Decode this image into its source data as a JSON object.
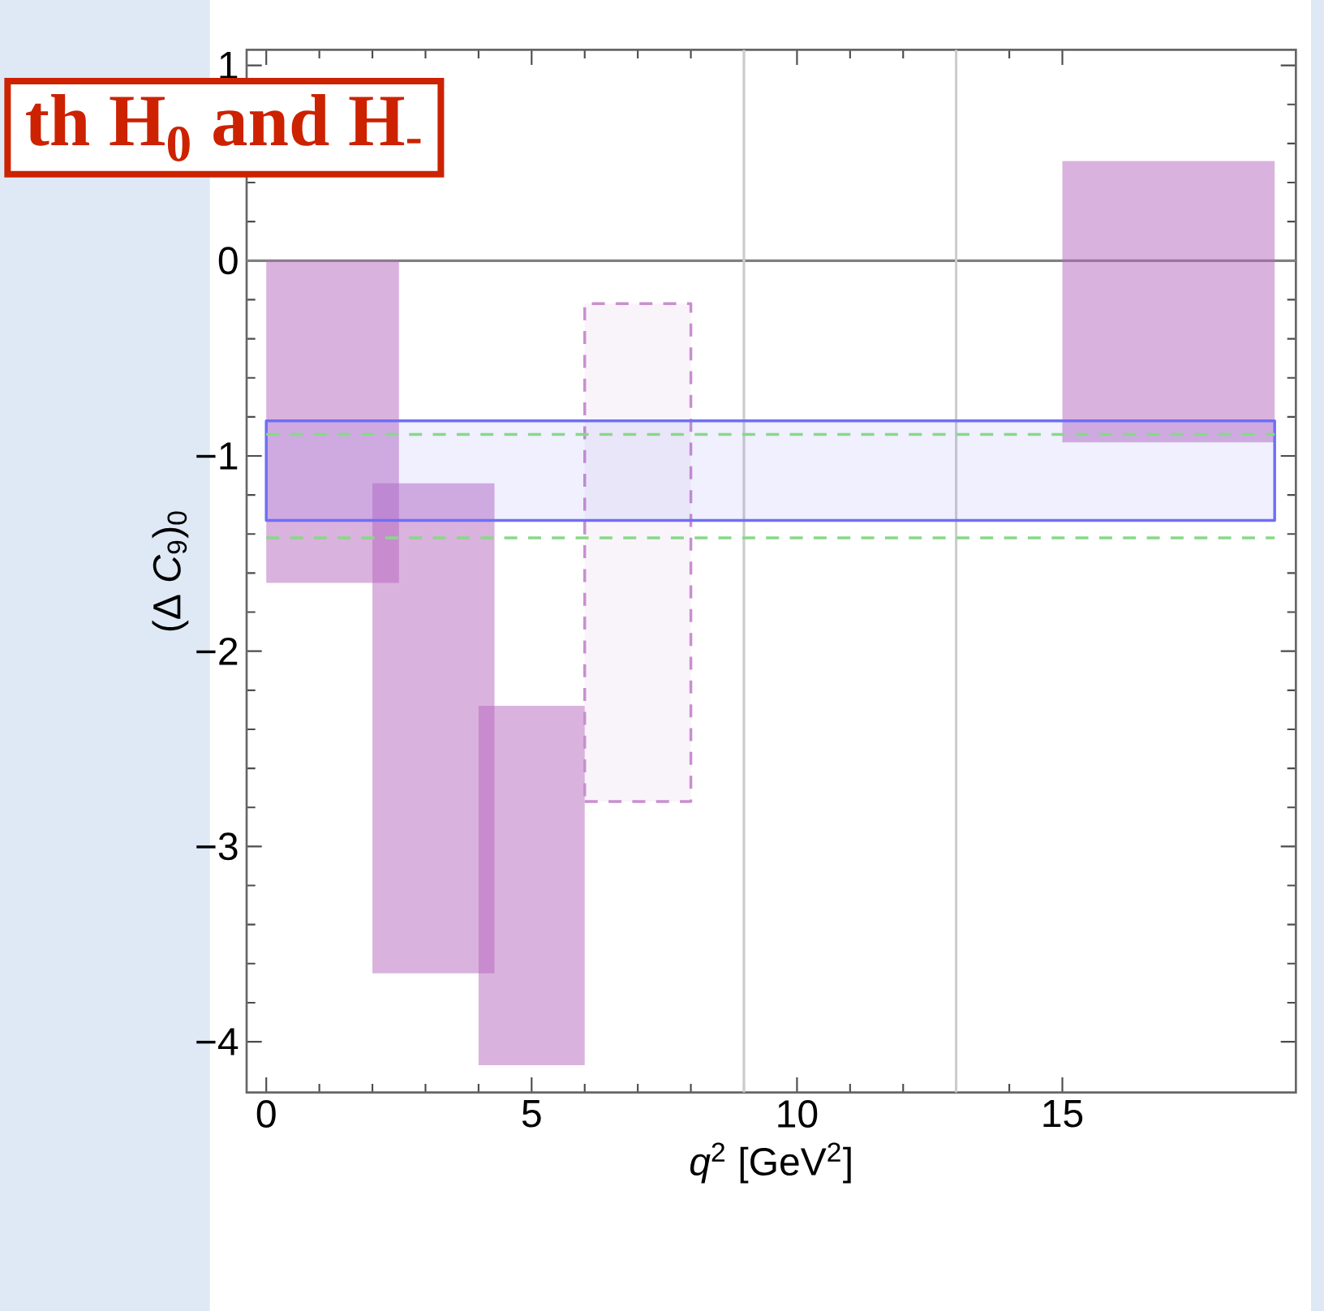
{
  "chart_data": {
    "type": "area",
    "xlabel": "*q*$^{2}$ [GeV$^{2}$]",
    "ylabel": "(Δ *C*$_{9}$)$_{0}$",
    "annotations": [
      "th  H$_{0}$ and H$_{-}$"
    ],
    "xlim": [
      -0.37,
      19.4
    ],
    "ylim": [
      -4.26,
      1.08
    ],
    "xticks": [
      0,
      5,
      10,
      15
    ],
    "yticks": [
      {
        "value": -4,
        "label": "−4"
      },
      {
        "value": -3,
        "label": "−3"
      },
      {
        "value": -2,
        "label": "−2"
      },
      {
        "value": -1,
        "label": "−1"
      },
      0,
      1
    ],
    "series": [
      {
        "color": "#b565bd",
        "x": [
          0,
          2.5
        ],
        "values": [
          null,
          null
        ],
        "lower": [
          -1.65,
          -1.65
        ],
        "upper": [
          0,
          0
        ]
      },
      {
        "color": "#b565bd",
        "x": [
          2,
          4.3
        ],
        "values": [
          null,
          null
        ],
        "lower": [
          -3.65,
          -3.65
        ],
        "upper": [
          -1.14,
          -1.14
        ]
      },
      {
        "color": "#b565bd",
        "x": [
          4,
          6
        ],
        "values": [
          null,
          null
        ],
        "lower": [
          -4.12,
          -4.12
        ],
        "upper": [
          -2.28,
          -2.28
        ]
      },
      {
        "color": "#b565bd",
        "x": [
          15,
          19
        ],
        "values": [
          null,
          null
        ],
        "lower": [
          -0.93,
          -0.93
        ],
        "upper": [
          0.51,
          0.51
        ]
      },
      {
        "color": "#c98fd0",
        "line_style": "dashed",
        "x": [
          6,
          8
        ],
        "values": [
          null,
          null
        ],
        "lower": [
          -2.77,
          -2.77
        ],
        "upper": [
          -0.22,
          -0.22
        ]
      },
      {
        "color": "#6f6ff5",
        "line_style": "solid",
        "x": [
          0,
          19
        ],
        "values": [
          null,
          null
        ],
        "lower": [
          -1.33,
          -1.33
        ],
        "upper": [
          -0.82,
          -0.82
        ]
      },
      {
        "type": "line",
        "color": "#88d888",
        "line_style": "dashed",
        "x": [
          0,
          19
        ],
        "values": [
          -0.89,
          -0.89
        ]
      },
      {
        "type": "line",
        "color": "#88d888",
        "line_style": "dashed",
        "x": [
          0,
          19
        ],
        "values": [
          -1.42,
          -1.42
        ]
      }
    ],
    "ref_lines": [
      {
        "axis": "y",
        "value": 0,
        "color": "#808080"
      },
      {
        "axis": "x",
        "value": 9,
        "color": "#cccccc"
      },
      {
        "axis": "x",
        "value": 13,
        "color": "#cccccc"
      }
    ],
    "grid": false,
    "marker": "none"
  }
}
